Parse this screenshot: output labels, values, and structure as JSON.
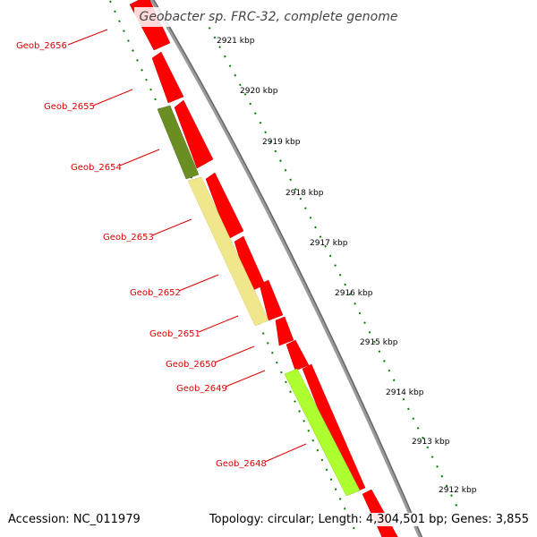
{
  "title": "Geobacter sp. FRC-32, complete genome",
  "footer": {
    "accession": "Accession: NC_011979",
    "topology": "Topology: circular; Length: 4,304,501 bp; Genes: 3,855"
  },
  "colors": {
    "forward_cds": "#ff0000",
    "reverse_cds_red": "#ff0000",
    "gene_2654": "#6b8e23",
    "gene_2653": "#f0e68c",
    "gene_2648": "#adff2f",
    "backbone": "#888888",
    "tick_marks": "#006400",
    "label_text": "#dd0000"
  },
  "gene_labels": [
    "Geob_2656",
    "Geob_2655",
    "Geob_2654",
    "Geob_2653",
    "Geob_2652",
    "Geob_2651",
    "Geob_2650",
    "Geob_2649",
    "Geob_2648"
  ],
  "kbp_labels": [
    "2921 kbp",
    "2920 kbp",
    "2919 kbp",
    "2918 kbp",
    "2917 kbp",
    "2916 kbp",
    "2915 kbp",
    "2914 kbp",
    "2913 kbp",
    "2912 kbp"
  ]
}
